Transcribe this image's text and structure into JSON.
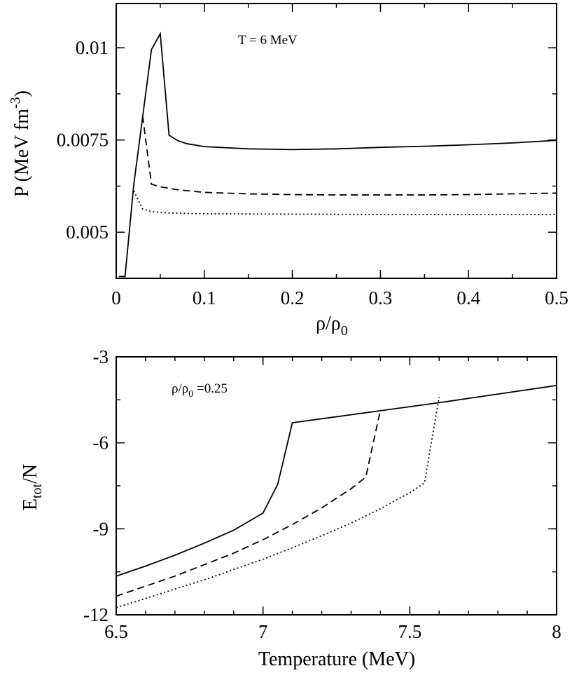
{
  "chart_data": [
    {
      "type": "line",
      "annotation": "T = 6 MeV",
      "xlabel": {
        "main": "ρ/ρ",
        "sub": "0"
      },
      "ylabel": {
        "main": "P (MeV fm",
        "sup": "-3",
        "close": ")"
      },
      "xlim": [
        0,
        0.5
      ],
      "ylim": [
        0.00375,
        0.0112
      ],
      "xticks": [
        0,
        0.1,
        0.2,
        0.3,
        0.4,
        0.5
      ],
      "xtick_labels": [
        "0",
        "0.1",
        "0.2",
        "0.3",
        "0.4",
        "0.5"
      ],
      "yticks": [
        0.005,
        0.0075,
        0.01
      ],
      "ytick_labels": [
        "0.005",
        "0.0075",
        "0.01"
      ],
      "series": [
        {
          "name": "solid",
          "style": "solid",
          "x": [
            0.003,
            0.01,
            0.02,
            0.04,
            0.05,
            0.06,
            0.07,
            0.08,
            0.1,
            0.15,
            0.2,
            0.25,
            0.3,
            0.35,
            0.4,
            0.45,
            0.5
          ],
          "y": [
            0.0038,
            0.0038,
            0.0063,
            0.00995,
            0.01038,
            0.00763,
            0.00748,
            0.0074,
            0.00732,
            0.00726,
            0.00724,
            0.00726,
            0.0073,
            0.00733,
            0.00737,
            0.00742,
            0.00749
          ]
        },
        {
          "name": "dashed",
          "style": "dashed",
          "x": [
            0.03,
            0.04,
            0.05,
            0.07,
            0.1,
            0.15,
            0.2,
            0.25,
            0.3,
            0.35,
            0.4,
            0.45,
            0.5
          ],
          "y": [
            0.00815,
            0.0063,
            0.00623,
            0.00615,
            0.00608,
            0.00604,
            0.00602,
            0.00601,
            0.00601,
            0.00601,
            0.00602,
            0.00604,
            0.00606
          ]
        },
        {
          "name": "dotted",
          "style": "dotted",
          "x": [
            0.02,
            0.03,
            0.04,
            0.06,
            0.1,
            0.2,
            0.3,
            0.4,
            0.5
          ],
          "y": [
            0.00612,
            0.00563,
            0.00556,
            0.00552,
            0.0055,
            0.00549,
            0.00548,
            0.00548,
            0.00548
          ]
        }
      ]
    },
    {
      "type": "line",
      "annotation": {
        "main": "ρ/ρ",
        "sub": "0",
        "rest": " =0.25"
      },
      "xlabel": "Temperature (MeV)",
      "ylabel": {
        "main": "E",
        "sub": "tot",
        "rest": "/N"
      },
      "xlim": [
        6.5,
        8
      ],
      "ylim": [
        -12,
        -3
      ],
      "xticks": [
        6.5,
        7,
        7.5,
        8
      ],
      "xtick_labels": [
        "6.5",
        "7",
        "7.5",
        "8"
      ],
      "yticks": [
        -12,
        -9,
        -6,
        -3
      ],
      "ytick_labels": [
        "-12",
        "-9",
        "-6",
        "-3"
      ],
      "series": [
        {
          "name": "solid",
          "style": "solid",
          "x": [
            6.5,
            6.6,
            6.7,
            6.8,
            6.9,
            7.0,
            7.05,
            7.1,
            7.2,
            7.3,
            7.4,
            7.5,
            7.6,
            7.7,
            7.8,
            7.9,
            8.0
          ],
          "y": [
            -10.65,
            -10.3,
            -9.92,
            -9.5,
            -9.05,
            -8.45,
            -7.45,
            -5.3,
            -5.16,
            -5.02,
            -4.88,
            -4.74,
            -4.6,
            -4.45,
            -4.3,
            -4.15,
            -4.0
          ]
        },
        {
          "name": "dashed",
          "style": "dashed",
          "x": [
            6.5,
            6.6,
            6.7,
            6.8,
            6.9,
            7.0,
            7.1,
            7.2,
            7.3,
            7.35,
            7.4
          ],
          "y": [
            -11.35,
            -11.0,
            -10.65,
            -10.25,
            -9.85,
            -9.38,
            -8.85,
            -8.27,
            -7.6,
            -7.2,
            -4.85
          ]
        },
        {
          "name": "dotted",
          "style": "dotted",
          "x": [
            6.5,
            6.6,
            6.7,
            6.8,
            6.9,
            7.0,
            7.1,
            7.2,
            7.3,
            7.4,
            7.5,
            7.55,
            7.6
          ],
          "y": [
            -11.75,
            -11.43,
            -11.1,
            -10.78,
            -10.42,
            -10.06,
            -9.66,
            -9.24,
            -8.8,
            -8.3,
            -7.74,
            -7.4,
            -4.4
          ]
        }
      ]
    }
  ]
}
